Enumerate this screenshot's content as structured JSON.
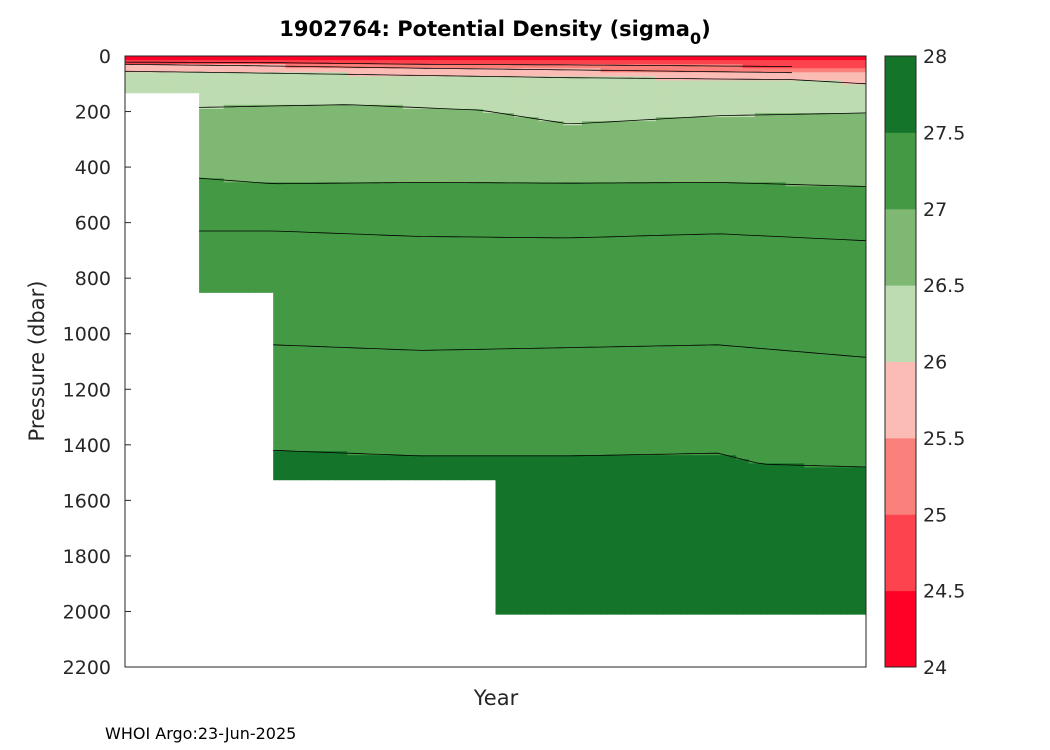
{
  "chart_data": {
    "type": "heatmap",
    "title_prefix": "1902764: Potential Density (sigma",
    "title_subscript": "0",
    "title_suffix": ")",
    "xlabel": "Year",
    "ylabel": "Pressure (dbar)",
    "y_reversed": true,
    "ylim": [
      0,
      2200
    ],
    "yticks": [
      0,
      200,
      400,
      600,
      800,
      1000,
      1200,
      1400,
      1600,
      1800,
      2000,
      2200
    ],
    "xticks": [],
    "colorbar": {
      "range": [
        24,
        28
      ],
      "ticks": [
        24,
        24.5,
        25,
        25.5,
        26,
        26.5,
        27,
        27.5,
        28
      ],
      "levels": [
        {
          "from": 24.0,
          "to": 24.5,
          "color": "#ff0026"
        },
        {
          "from": 24.5,
          "to": 25.0,
          "color": "#fd434e"
        },
        {
          "from": 25.0,
          "to": 25.5,
          "color": "#fa807b"
        },
        {
          "from": 25.5,
          "to": 26.0,
          "color": "#fcbcb6"
        },
        {
          "from": 26.0,
          "to": 26.5,
          "color": "#bedcb1"
        },
        {
          "from": 26.5,
          "to": 27.0,
          "color": "#7fb872"
        },
        {
          "from": 27.0,
          "to": 27.5,
          "color": "#449944"
        },
        {
          "from": 27.5,
          "to": 28.0,
          "color": "#14752a"
        }
      ]
    },
    "profiles_max_pressure": [
      {
        "x": 0.0,
        "pmax": 130
      },
      {
        "x": 0.1,
        "pmax": 850
      },
      {
        "x": 0.2,
        "pmax": 1520
      },
      {
        "x": 0.5,
        "pmax": 2010
      },
      {
        "x": 1.0,
        "pmax": 2000
      }
    ],
    "contours": [
      {
        "level": 25.0,
        "points": [
          [
            0.0,
            22
          ],
          [
            0.2,
            24
          ],
          [
            0.4,
            30
          ],
          [
            0.6,
            32
          ],
          [
            0.9,
            38
          ]
        ]
      },
      {
        "level": 25.5,
        "points": [
          [
            0.0,
            30
          ],
          [
            0.2,
            36
          ],
          [
            0.4,
            44
          ],
          [
            0.6,
            50
          ],
          [
            0.9,
            60
          ]
        ]
      },
      {
        "level": 26.0,
        "points": [
          [
            0.0,
            55
          ],
          [
            0.2,
            62
          ],
          [
            0.4,
            70
          ],
          [
            0.6,
            78
          ],
          [
            0.9,
            85
          ],
          [
            1.0,
            100
          ]
        ]
      },
      {
        "level": 26.5,
        "points": [
          [
            0.1,
            185
          ],
          [
            0.3,
            175
          ],
          [
            0.48,
            195
          ],
          [
            0.6,
            245
          ],
          [
            0.8,
            215
          ],
          [
            1.0,
            205
          ]
        ]
      },
      {
        "level": 27.0,
        "points": [
          [
            0.1,
            440
          ],
          [
            0.2,
            460
          ],
          [
            0.4,
            455
          ],
          [
            0.6,
            458
          ],
          [
            0.8,
            455
          ],
          [
            1.0,
            470
          ]
        ]
      },
      {
        "level": 27.25,
        "points": [
          [
            0.1,
            630
          ],
          [
            0.2,
            630
          ],
          [
            0.4,
            650
          ],
          [
            0.6,
            655
          ],
          [
            0.8,
            640
          ],
          [
            1.0,
            665
          ]
        ]
      },
      {
        "level": 27.4,
        "points": [
          [
            0.2,
            1040
          ],
          [
            0.4,
            1060
          ],
          [
            0.6,
            1050
          ],
          [
            0.8,
            1040
          ],
          [
            1.0,
            1085
          ]
        ]
      },
      {
        "level": 27.5,
        "points": [
          [
            0.2,
            1420
          ],
          [
            0.4,
            1440
          ],
          [
            0.6,
            1440
          ],
          [
            0.8,
            1430
          ],
          [
            0.86,
            1470
          ],
          [
            1.0,
            1480
          ]
        ]
      }
    ]
  },
  "footer": "WHOI Argo:23-Jun-2025"
}
